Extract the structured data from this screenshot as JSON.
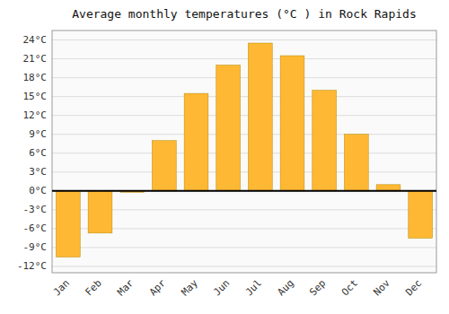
{
  "chart_data": {
    "type": "bar",
    "title": "Average monthly temperatures (°C ) in Rock Rapids",
    "categories": [
      "Jan",
      "Feb",
      "Mar",
      "Apr",
      "May",
      "Jun",
      "Jul",
      "Aug",
      "Sep",
      "Oct",
      "Nov",
      "Dec"
    ],
    "values": [
      -10.5,
      -6.7,
      -0.2,
      8.0,
      15.5,
      20.0,
      23.5,
      21.5,
      16.0,
      9.0,
      1.0,
      -7.5
    ],
    "color": "#FFB833",
    "ylim": [
      -13,
      25.5
    ],
    "yticks": [
      {
        "value": -12,
        "label": "-12°C"
      },
      {
        "value": -9,
        "label": "-9°C"
      },
      {
        "value": -6,
        "label": "-6°C"
      },
      {
        "value": -3,
        "label": "-3°C"
      },
      {
        "value": 0,
        "label": "0°C"
      },
      {
        "value": 3,
        "label": "3°C"
      },
      {
        "value": 6,
        "label": "6°C"
      },
      {
        "value": 9,
        "label": "9°C"
      },
      {
        "value": 12,
        "label": "12°C"
      },
      {
        "value": 15,
        "label": "15°C"
      },
      {
        "value": 18,
        "label": "18°C"
      },
      {
        "value": 21,
        "label": "21°C"
      },
      {
        "value": 24,
        "label": "24°C"
      }
    ],
    "grid": true
  }
}
